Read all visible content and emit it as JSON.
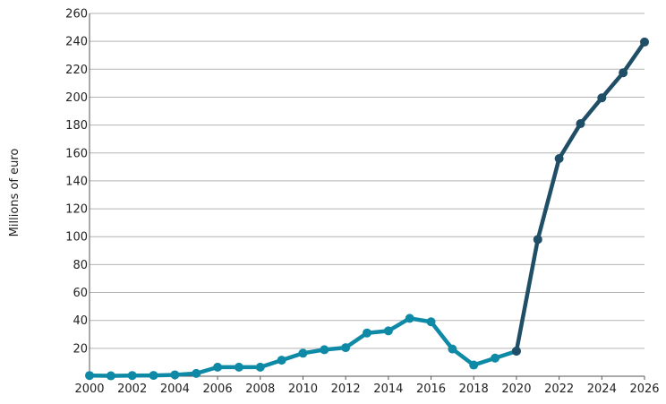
{
  "chart_data": {
    "type": "line",
    "title": "",
    "xlabel": "",
    "ylabel": "Millions of euro",
    "xlim": [
      2000,
      2026
    ],
    "ylim": [
      0,
      260
    ],
    "x_ticks": [
      2000,
      2002,
      2004,
      2006,
      2008,
      2010,
      2012,
      2014,
      2016,
      2018,
      2020,
      2022,
      2024,
      2026
    ],
    "y_ticks": [
      20,
      40,
      60,
      80,
      100,
      120,
      140,
      160,
      180,
      200,
      220,
      240,
      260
    ],
    "grid": "horizontal",
    "legend": "none",
    "series": [
      {
        "style": "actual",
        "color": "#0e8aa6",
        "x": [
          2000,
          2001,
          2002,
          2003,
          2004,
          2005,
          2006,
          2007,
          2008,
          2009,
          2010,
          2011,
          2012,
          2013,
          2014,
          2015,
          2016,
          2017,
          2018,
          2019,
          2020
        ],
        "values": [
          0.5,
          0.3,
          0.5,
          0.6,
          1,
          2,
          6.5,
          6.5,
          6.5,
          11.5,
          16.5,
          19,
          20.5,
          31,
          32.5,
          41.5,
          39,
          19.5,
          8,
          13,
          18
        ]
      },
      {
        "style": "forecast",
        "color": "#1f4e66",
        "x": [
          2020,
          2021,
          2022,
          2023,
          2024,
          2025,
          2026
        ],
        "values": [
          18,
          98,
          156,
          181,
          199.5,
          217.5,
          239.5
        ]
      }
    ]
  }
}
